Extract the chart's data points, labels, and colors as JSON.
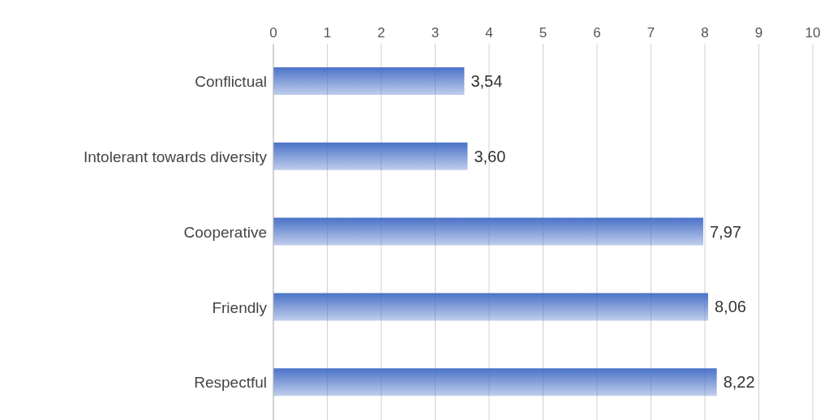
{
  "chart_data": {
    "type": "bar",
    "orientation": "horizontal",
    "categories": [
      "Conflictual",
      "Intolerant towards diversity",
      "Cooperative",
      "Friendly",
      "Respectful"
    ],
    "values": [
      3.54,
      3.6,
      7.97,
      8.06,
      8.22
    ],
    "value_labels": [
      "3,54",
      "3,60",
      "7,97",
      "8,06",
      "8,22"
    ],
    "color": "#4a72c8",
    "xlim": [
      0,
      10
    ],
    "xticks": [
      0,
      1,
      2,
      3,
      4,
      5,
      6,
      7,
      8,
      9,
      10
    ],
    "grid": "x"
  }
}
